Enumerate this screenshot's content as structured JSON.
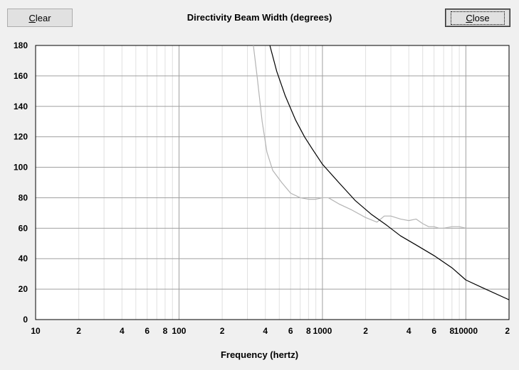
{
  "toolbar": {
    "clear_label_hotkey": "C",
    "clear_label_rest": "lear",
    "close_label_hotkey": "C",
    "close_label_rest": "lose"
  },
  "chart_data": {
    "type": "line",
    "title": "Directivity Beam Width (degrees)",
    "xlabel": "Frequency (hertz)",
    "ylabel": "",
    "xscale": "log",
    "xlim": [
      10,
      20000
    ],
    "ylim": [
      0,
      180
    ],
    "grid": true,
    "y_ticks": [
      0,
      20,
      40,
      60,
      80,
      100,
      120,
      140,
      160,
      180
    ],
    "x_ticks": [
      {
        "value": 10,
        "label": "10"
      },
      {
        "value": 20,
        "label": "2"
      },
      {
        "value": 40,
        "label": "4"
      },
      {
        "value": 60,
        "label": "6"
      },
      {
        "value": 80,
        "label": "8"
      },
      {
        "value": 100,
        "label": "100"
      },
      {
        "value": 200,
        "label": "2"
      },
      {
        "value": 400,
        "label": "4"
      },
      {
        "value": 600,
        "label": "6"
      },
      {
        "value": 800,
        "label": "8"
      },
      {
        "value": 1000,
        "label": "1000"
      },
      {
        "value": 2000,
        "label": "2"
      },
      {
        "value": 4000,
        "label": "4"
      },
      {
        "value": 6000,
        "label": "6"
      },
      {
        "value": 8000,
        "label": "8"
      },
      {
        "value": 10000,
        "label": "10000"
      },
      {
        "value": 20000,
        "label": "2"
      }
    ],
    "series": [
      {
        "color": "#000000",
        "points": [
          [
            430,
            180
          ],
          [
            480,
            163
          ],
          [
            550,
            147
          ],
          [
            650,
            131
          ],
          [
            750,
            120
          ],
          [
            850,
            112
          ],
          [
            1000,
            102
          ],
          [
            1300,
            90
          ],
          [
            1700,
            78
          ],
          [
            2200,
            69
          ],
          [
            2800,
            62
          ],
          [
            3500,
            55
          ],
          [
            4500,
            49
          ],
          [
            6000,
            42
          ],
          [
            8000,
            34
          ],
          [
            10000,
            26
          ],
          [
            13000,
            21
          ],
          [
            20000,
            13
          ]
        ]
      },
      {
        "color": "#b4b4b4",
        "points": [
          [
            330,
            180
          ],
          [
            350,
            160
          ],
          [
            380,
            130
          ],
          [
            410,
            110
          ],
          [
            450,
            98
          ],
          [
            520,
            90
          ],
          [
            600,
            83
          ],
          [
            700,
            80
          ],
          [
            800,
            79
          ],
          [
            900,
            79
          ],
          [
            1000,
            80
          ],
          [
            1100,
            80
          ],
          [
            1300,
            76
          ],
          [
            1600,
            72
          ],
          [
            2000,
            67
          ],
          [
            2400,
            64
          ],
          [
            2700,
            68
          ],
          [
            3000,
            68
          ],
          [
            3500,
            66
          ],
          [
            4000,
            65
          ],
          [
            4500,
            66
          ],
          [
            5000,
            63
          ],
          [
            5500,
            61
          ],
          [
            6000,
            61
          ],
          [
            6500,
            60
          ],
          [
            7000,
            60
          ],
          [
            8000,
            61
          ],
          [
            9000,
            61
          ],
          [
            10000,
            60
          ],
          [
            12000,
            60
          ],
          [
            15000,
            60
          ],
          [
            20000,
            60
          ]
        ]
      }
    ]
  }
}
